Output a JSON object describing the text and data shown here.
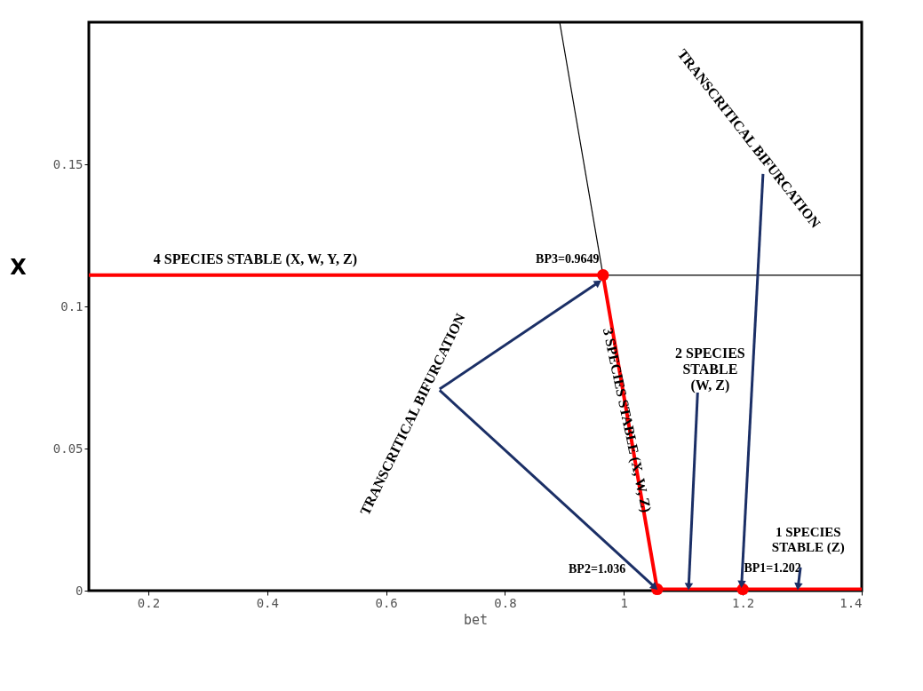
{
  "chart_data": {
    "type": "line",
    "xlabel": "bet",
    "ylabel": "X",
    "xlim": [
      0.1,
      1.4
    ],
    "ylim": [
      0,
      0.2
    ],
    "xticks": [
      0.2,
      0.4,
      0.6,
      0.8,
      1,
      1.2,
      1.4
    ],
    "yticks": [
      0,
      0.05,
      0.1,
      0.15
    ],
    "grid": false,
    "legend": false,
    "line_style": "solid",
    "series": [
      {
        "color": "#ff0000",
        "x": [
          0.1,
          0.9649,
          1.056,
          1.2,
          1.4
        ],
        "values": [
          0.111,
          0.111,
          0.0005,
          0.0005,
          0.0005
        ]
      },
      {
        "color": "#000000",
        "x": [
          0.892,
          0.9649
        ],
        "values": [
          0.2,
          0.111
        ]
      },
      {
        "color": "#000000",
        "x": [
          0.9649,
          1.4
        ],
        "values": [
          0.111,
          0.111
        ]
      },
      {
        "type": "scatter",
        "color": "#ff0000",
        "marker": "circle",
        "x": [
          0.9649,
          1.056,
          1.2
        ],
        "values": [
          0.111,
          0.0005,
          0.0005
        ]
      }
    ],
    "annotations": [
      "4 SPECIES STABLE (X, W, Y, Z)",
      "BP3=0.9649",
      "3 SPECIES STABLE (X, W, Z)",
      {
        "text": "2 SPECIES\nSTABLE\n(W, Z)",
        "x": 1.109,
        "y": 0.0014
      },
      {
        "text": "TRANSCRITICAL BIFURCATION",
        "x": 0.957,
        "y": 0.1084
      },
      {
        "text": "TRANSCRITICAL BIFURCATION",
        "x": 1.198,
        "y": 0.0022
      },
      "BP2=1.036",
      "BP1=1.202",
      {
        "text": "1 SPECIES\nSTABLE (Z)",
        "x": 1.293,
        "y": 0.0014
      }
    ]
  }
}
